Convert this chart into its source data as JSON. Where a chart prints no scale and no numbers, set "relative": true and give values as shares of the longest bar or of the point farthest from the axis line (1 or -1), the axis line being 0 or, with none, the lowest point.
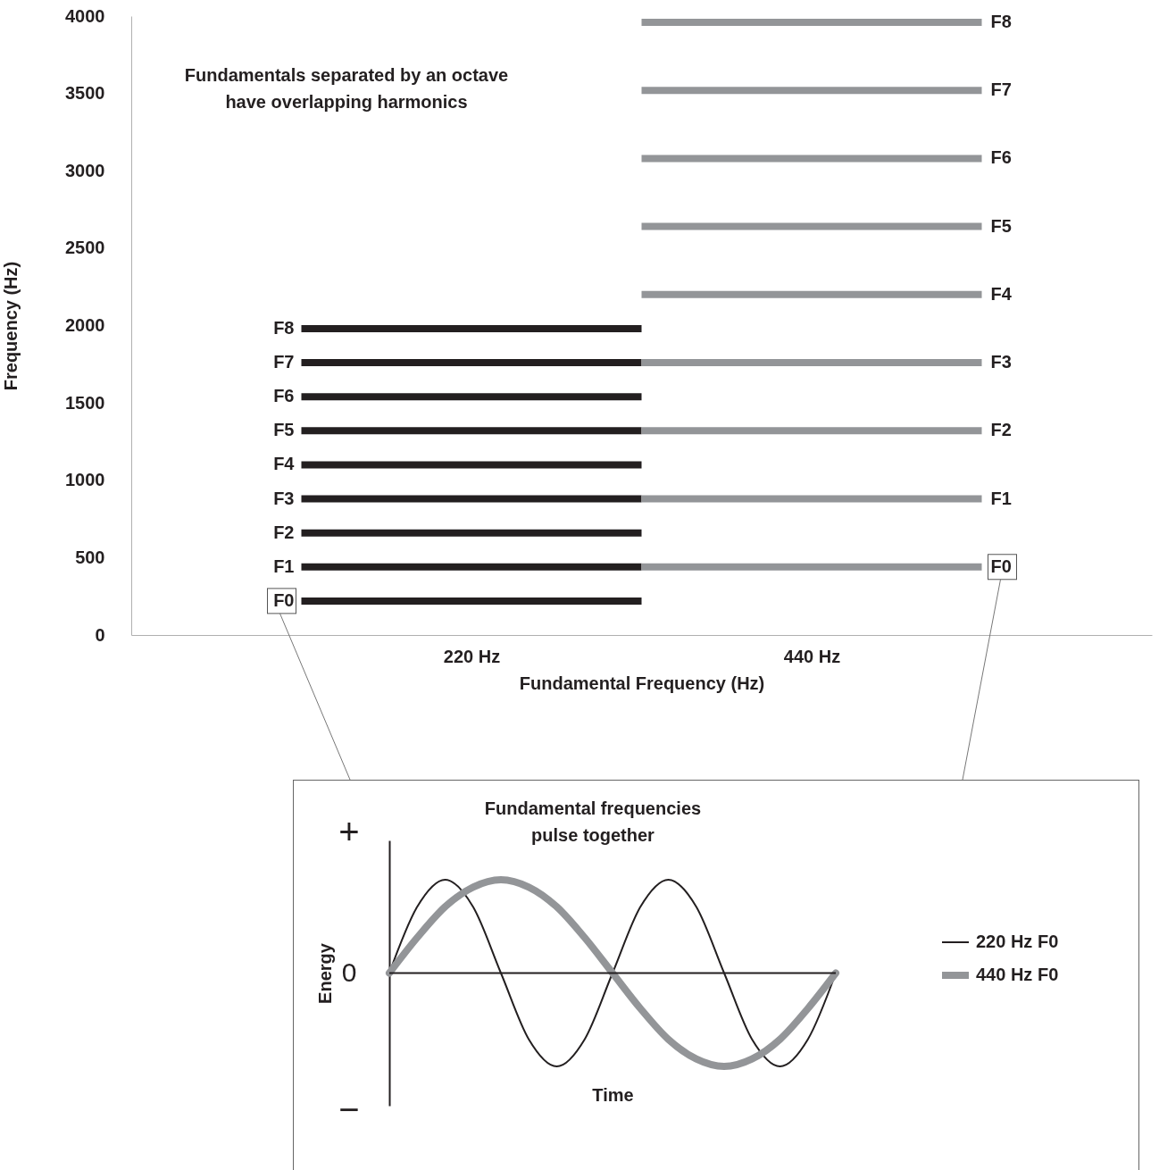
{
  "chart_data": [
    {
      "type": "line",
      "xlabel": "Fundamental Frequency (Hz)",
      "ylabel": "Frequency (Hz)",
      "xlim": [
        0,
        660
      ],
      "xticks": [
        {
          "value": 220,
          "label": "220 Hz"
        },
        {
          "value": 440,
          "label": "440 Hz"
        }
      ],
      "ylim": [
        0,
        4000
      ],
      "yticks": [
        0,
        500,
        1000,
        1500,
        2000,
        2500,
        3000,
        3500,
        4000
      ],
      "grid": false,
      "annotations": [
        "Fundamentals separated by an octave\nhave overlapping harmonics"
      ],
      "series": [
        {
          "color": "#231f20",
          "x": [
            110,
            330
          ],
          "values": [
            220,
            220
          ],
          "value_labels": [
            "F0",
            null
          ]
        },
        {
          "color": "#231f20",
          "x": [
            110,
            330
          ],
          "values": [
            440,
            440
          ],
          "value_labels": [
            "F1",
            null
          ]
        },
        {
          "color": "#231f20",
          "x": [
            110,
            330
          ],
          "values": [
            660,
            660
          ],
          "value_labels": [
            "F2",
            null
          ]
        },
        {
          "color": "#231f20",
          "x": [
            110,
            330
          ],
          "values": [
            880,
            880
          ],
          "value_labels": [
            "F3",
            null
          ]
        },
        {
          "color": "#231f20",
          "x": [
            110,
            330
          ],
          "values": [
            1100,
            1100
          ],
          "value_labels": [
            "F4",
            null
          ]
        },
        {
          "color": "#231f20",
          "x": [
            110,
            330
          ],
          "values": [
            1320,
            1320
          ],
          "value_labels": [
            "F5",
            null
          ]
        },
        {
          "color": "#231f20",
          "x": [
            110,
            330
          ],
          "values": [
            1540,
            1540
          ],
          "value_labels": [
            "F6",
            null
          ]
        },
        {
          "color": "#231f20",
          "x": [
            110,
            330
          ],
          "values": [
            1760,
            1760
          ],
          "value_labels": [
            "F7",
            null
          ]
        },
        {
          "color": "#231f20",
          "x": [
            110,
            330
          ],
          "values": [
            1980,
            1980
          ],
          "value_labels": [
            "F8",
            null
          ]
        },
        {
          "color": "#939598",
          "x": [
            330,
            550
          ],
          "values": [
            440,
            440
          ],
          "value_labels": [
            null,
            "F0"
          ]
        },
        {
          "color": "#939598",
          "x": [
            330,
            550
          ],
          "values": [
            880,
            880
          ],
          "value_labels": [
            null,
            "F1"
          ]
        },
        {
          "color": "#939598",
          "x": [
            330,
            550
          ],
          "values": [
            1320,
            1320
          ],
          "value_labels": [
            null,
            "F2"
          ]
        },
        {
          "color": "#939598",
          "x": [
            330,
            550
          ],
          "values": [
            1760,
            1760
          ],
          "value_labels": [
            null,
            "F3"
          ]
        },
        {
          "color": "#939598",
          "x": [
            330,
            550
          ],
          "values": [
            2200,
            2200
          ],
          "value_labels": [
            null,
            "F4"
          ]
        },
        {
          "color": "#939598",
          "x": [
            330,
            550
          ],
          "values": [
            2640,
            2640
          ],
          "value_labels": [
            null,
            "F5"
          ]
        },
        {
          "color": "#939598",
          "x": [
            330,
            550
          ],
          "values": [
            3080,
            3080
          ],
          "value_labels": [
            null,
            "F6"
          ]
        },
        {
          "color": "#939598",
          "x": [
            330,
            550
          ],
          "values": [
            3520,
            3520
          ],
          "value_labels": [
            null,
            "F7"
          ]
        },
        {
          "color": "#939598",
          "x": [
            330,
            550
          ],
          "values": [
            3960,
            3960
          ],
          "value_labels": [
            null,
            "F8"
          ]
        }
      ]
    },
    {
      "type": "line",
      "title": "Fundamental frequencies\npulse together",
      "xlabel": "Time",
      "ylabel": "Energy",
      "relative": true,
      "legend": "right",
      "annotations": [
        "+",
        "0",
        "−"
      ],
      "categories": [
        null,
        null,
        null,
        null,
        null,
        null,
        null,
        null,
        null,
        null,
        null,
        null,
        null,
        null,
        null,
        null,
        null
      ],
      "series": [
        {
          "name": "220 Hz F0",
          "color": "#231f20",
          "values": [
            0,
            0.71,
            1,
            0.71,
            0,
            -0.71,
            -1,
            -0.71,
            0,
            0.71,
            1,
            0.71,
            0,
            -0.71,
            -1,
            -0.71,
            0
          ]
        },
        {
          "name": "440 Hz F0",
          "color": "#939598",
          "values": [
            0,
            0.38,
            0.71,
            0.92,
            1,
            0.92,
            0.71,
            0.38,
            0,
            -0.38,
            -0.71,
            -0.92,
            -1,
            -0.92,
            -0.71,
            -0.38,
            0
          ]
        }
      ]
    }
  ]
}
